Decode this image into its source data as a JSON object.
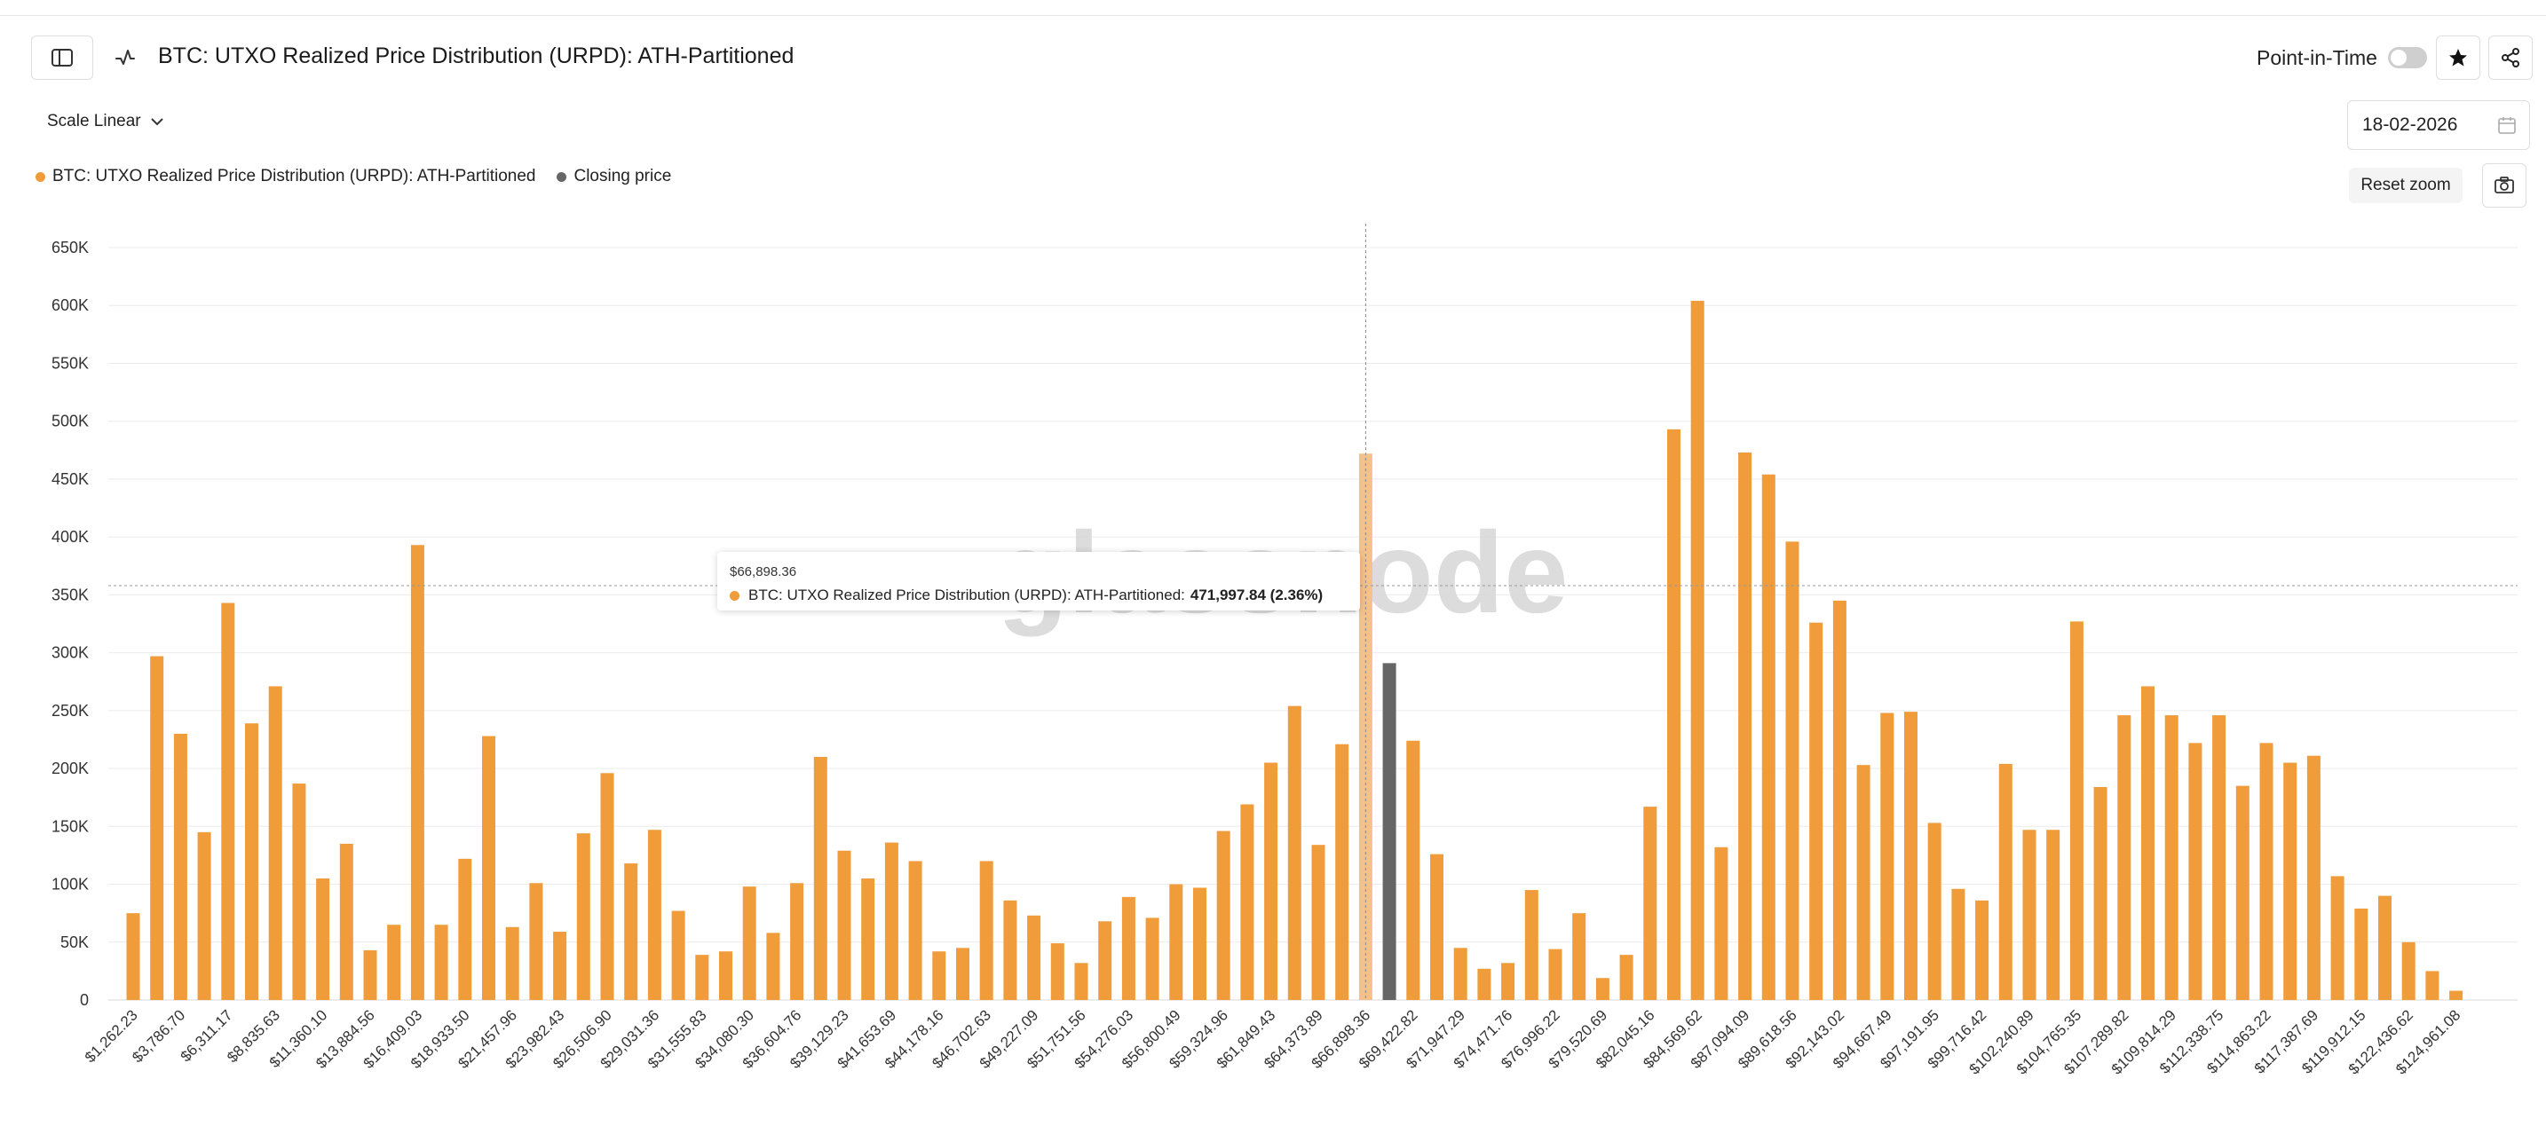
{
  "header": {
    "title": "BTC: UTXO Realized Price Distribution (URPD): ATH-Partitioned",
    "point_in_time_label": "Point-in-Time",
    "point_in_time_enabled": false
  },
  "controls": {
    "scale_label": "Scale Linear",
    "date_value": "18-02-2026",
    "reset_zoom_label": "Reset zoom"
  },
  "legend": {
    "series_label": "BTC: UTXO Realized Price Distribution (URPD): ATH-Partitioned",
    "closing_label": "Closing price"
  },
  "tooltip": {
    "date": "$66,898.36",
    "series_label": "BTC: UTXO Realized Price Distribution (URPD): ATH-Partitioned:",
    "value": "471,997.84 (2.36%)"
  },
  "watermark": "glassnode",
  "colors": {
    "bar": "#f19c3a",
    "bar_highlight": "#f6c089",
    "closing": "#666666",
    "grid": "#ececec",
    "axis_text": "#333333"
  },
  "chart_data": {
    "type": "bar",
    "ylim": [
      0,
      650000
    ],
    "yticks": [
      0,
      50000,
      100000,
      150000,
      200000,
      250000,
      300000,
      350000,
      400000,
      450000,
      500000,
      550000,
      600000,
      650000
    ],
    "ytick_labels": [
      "0",
      "50K",
      "100K",
      "150K",
      "200K",
      "250K",
      "300K",
      "350K",
      "400K",
      "450K",
      "500K",
      "550K",
      "600K",
      "650K"
    ],
    "xtick_labels": [
      "$1,262.23",
      "$3,786.70",
      "$6,311.17",
      "$8,835.63",
      "$11,360.10",
      "$13,884.56",
      "$16,409.03",
      "$18,933.50",
      "$21,457.96",
      "$23,982.43",
      "$26,506.90",
      "$29,031.36",
      "$31,555.83",
      "$34,080.30",
      "$36,604.76",
      "$39,129.23",
      "$41,653.69",
      "$44,178.16",
      "$46,702.63",
      "$49,227.09",
      "$51,751.56",
      "$54,276.03",
      "$56,800.49",
      "$59,324.96",
      "$61,849.43",
      "$64,373.89",
      "$66,898.36",
      "$69,422.82",
      "$71,947.29",
      "$74,471.76",
      "$76,996.22",
      "$79,520.69",
      "$82,045.16",
      "$84,569.62",
      "$87,094.09",
      "$89,618.56",
      "$92,143.02",
      "$94,667.49",
      "$97,191.95",
      "$99,716.42",
      "$102,240.89",
      "$104,765.35",
      "$107,289.82",
      "$109,814.29",
      "$112,338.75",
      "$114,863.22",
      "$117,387.69",
      "$119,912.15",
      "$122,436.62",
      "$124,961.08"
    ],
    "xtick_every": 2,
    "values": [
      75000,
      297000,
      230000,
      145000,
      343000,
      239000,
      271000,
      187000,
      105000,
      135000,
      43000,
      65000,
      393000,
      65000,
      122000,
      228000,
      63000,
      101000,
      59000,
      144000,
      196000,
      118000,
      147000,
      77000,
      39000,
      42000,
      98000,
      58000,
      101000,
      210000,
      129000,
      105000,
      136000,
      120000,
      42000,
      45000,
      120000,
      86000,
      73000,
      49000,
      32000,
      68000,
      89000,
      71000,
      100000,
      97000,
      146000,
      169000,
      205000,
      254000,
      134000,
      221000,
      471998,
      291000,
      224000,
      126000,
      45000,
      27000,
      32000,
      95000,
      44000,
      75000,
      19000,
      39000,
      167000,
      493000,
      604000,
      132000,
      473000,
      454000,
      396000,
      326000,
      345000,
      203000,
      248000,
      249000,
      153000,
      96000,
      86000,
      204000,
      147000,
      147000,
      327000,
      184000,
      246000,
      271000,
      246000,
      222000,
      246000,
      185000,
      222000,
      205000,
      211000,
      107000,
      79000,
      90000,
      50000,
      25000,
      8000
    ],
    "highlight_index": 52,
    "closing_index": 53,
    "crosshair_y": 358000
  }
}
